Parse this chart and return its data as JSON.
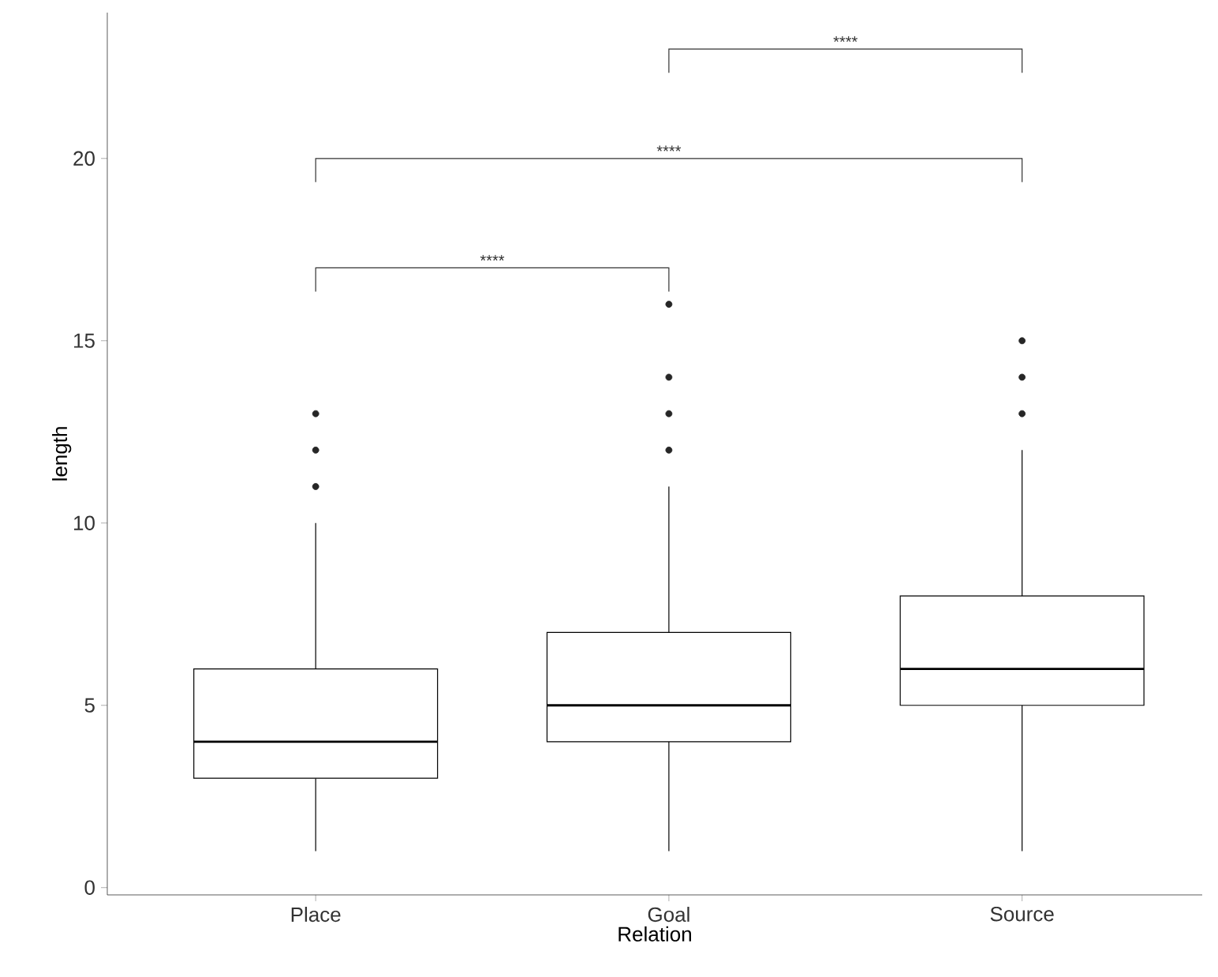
{
  "chart_data": {
    "type": "box",
    "xlabel": "Relation",
    "ylabel": "length",
    "categories": [
      "Place",
      "Goal",
      "Source"
    ],
    "boxes": [
      {
        "low": 1,
        "q1": 3,
        "median": 4,
        "q3": 6,
        "high": 10,
        "outliers": [
          11,
          12,
          13
        ]
      },
      {
        "low": 1,
        "q1": 4,
        "median": 5,
        "q3": 7,
        "high": 11,
        "outliers": [
          12,
          13,
          14,
          16
        ]
      },
      {
        "low": 1,
        "q1": 5,
        "median": 6,
        "q3": 8,
        "high": 12,
        "outliers": [
          13,
          14,
          15
        ]
      }
    ],
    "ylim": [
      -0.2,
      24
    ],
    "yticks": [
      0,
      5,
      10,
      15,
      20
    ],
    "annotations": [
      "****",
      "****",
      "****"
    ]
  }
}
